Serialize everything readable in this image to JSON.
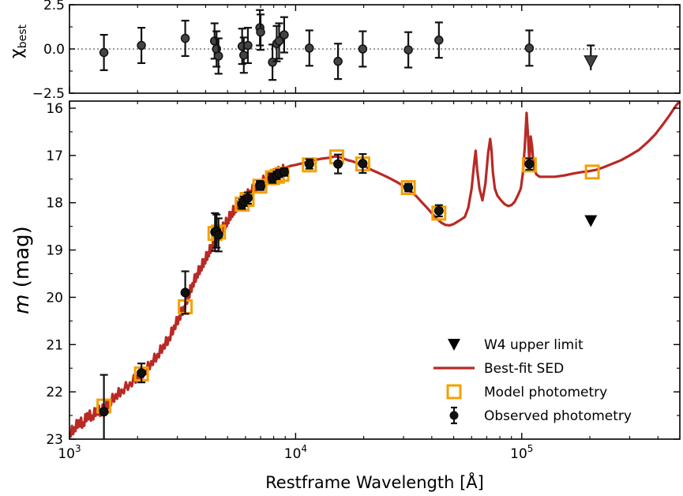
{
  "chart_data": [
    {
      "panel": "residuals",
      "type": "scatter",
      "ylabel_main": "χ",
      "ylabel_sub": "best",
      "ylim": [
        -2.5,
        2.5
      ],
      "yticks": [
        "2.5",
        "0.0",
        "−2.5"
      ],
      "ytick_values": [
        2.5,
        0.0,
        -2.5
      ],
      "xlim": [
        1000,
        500000
      ],
      "xscale": "log",
      "zero_line": true,
      "points": [
        {
          "x": 1420,
          "y": -0.2,
          "err": 1.0
        },
        {
          "x": 2080,
          "y": 0.2,
          "err": 1.0
        },
        {
          "x": 3250,
          "y": 0.6,
          "err": 1.0
        },
        {
          "x": 4380,
          "y": 0.45,
          "err": 1.0
        },
        {
          "x": 4470,
          "y": 0.0,
          "err": 1.0
        },
        {
          "x": 4560,
          "y": -0.4,
          "err": 1.0
        },
        {
          "x": 5800,
          "y": 0.15,
          "err": 1.0
        },
        {
          "x": 5900,
          "y": -0.35,
          "err": 1.0
        },
        {
          "x": 6150,
          "y": 0.2,
          "err": 1.0
        },
        {
          "x": 6950,
          "y": 1.2,
          "err": 1.0
        },
        {
          "x": 7000,
          "y": 0.95,
          "err": 1.0
        },
        {
          "x": 7900,
          "y": -0.75,
          "err": 1.0
        },
        {
          "x": 8250,
          "y": 0.3,
          "err": 1.0
        },
        {
          "x": 8450,
          "y": 0.45,
          "err": 1.0
        },
        {
          "x": 8900,
          "y": 0.8,
          "err": 1.0
        },
        {
          "x": 11500,
          "y": 0.05,
          "err": 1.0
        },
        {
          "x": 15400,
          "y": -0.7,
          "err": 1.0
        },
        {
          "x": 19800,
          "y": 0.0,
          "err": 1.0
        },
        {
          "x": 31500,
          "y": -0.05,
          "err": 1.0
        },
        {
          "x": 43000,
          "y": 0.5,
          "err": 1.0
        },
        {
          "x": 108000,
          "y": 0.05,
          "err": 1.0
        }
      ],
      "upper_limit_points": [
        {
          "x": 202000,
          "y": -0.7,
          "err_up": 0.9,
          "err_down": 0.5
        }
      ]
    },
    {
      "panel": "sed",
      "type": "line",
      "xlabel": "Restframe Wavelength [Å]",
      "ylabel_italic": "m",
      "ylabel_rest": " (mag)",
      "xscale": "log",
      "xlim": [
        1000,
        500000
      ],
      "ylim": [
        15.85,
        23.0
      ],
      "y_inverted": true,
      "yticks": [
        16,
        17,
        18,
        19,
        20,
        21,
        22,
        23
      ],
      "xticks": [
        {
          "value": 1000,
          "base": "10",
          "exp": "3"
        },
        {
          "value": 10000,
          "base": "10",
          "exp": "4"
        },
        {
          "value": 100000,
          "base": "10",
          "exp": "5"
        }
      ],
      "series": [
        {
          "name": "Best-fit SED",
          "kind": "line",
          "color": "#b82a25",
          "x": [
            1000,
            1050,
            1100,
            1150,
            1200,
            1260,
            1320,
            1380,
            1420,
            1500,
            1600,
            1700,
            1850,
            2000,
            2150,
            2300,
            2450,
            2600,
            2750,
            2900,
            3050,
            3200,
            3350,
            3500,
            3650,
            3800,
            3950,
            4100,
            4250,
            4400,
            4550,
            4700,
            4850,
            5000,
            5200,
            5400,
            5600,
            5800,
            6000,
            6300,
            6600,
            7000,
            7400,
            7800,
            8200,
            8600,
            9000,
            9500,
            10000,
            11000,
            12000,
            13000,
            14000,
            15000,
            16000,
            17000,
            18000,
            19000,
            20000,
            21000,
            22000,
            23000,
            24000,
            25000,
            26000,
            28000,
            30000,
            32000,
            34000,
            36000,
            38000,
            40000,
            42000,
            44000,
            46000,
            48000,
            50000,
            52000,
            54000,
            56000,
            58000,
            60000,
            61500,
            62500,
            63500,
            65000,
            67000,
            69000,
            71000,
            72500,
            73500,
            74500,
            76000,
            78000,
            81000,
            84000,
            87000,
            90000,
            93000,
            96000,
            99000,
            101000,
            103000,
            105000,
            106500,
            108000,
            109500,
            111000,
            112500,
            114000,
            116000,
            120000,
            128000,
            140000,
            155000,
            170000,
            185000,
            200000,
            215000,
            230000,
            250000,
            275000,
            300000,
            330000,
            360000,
            390000,
            420000,
            450000,
            480000,
            500000
          ],
          "y": [
            22.85,
            22.75,
            22.6,
            22.65,
            22.45,
            22.5,
            22.35,
            22.4,
            22.3,
            22.2,
            22.05,
            21.95,
            21.8,
            21.65,
            21.55,
            21.35,
            21.2,
            21.0,
            20.85,
            20.6,
            20.4,
            20.2,
            19.95,
            19.7,
            19.5,
            19.35,
            19.2,
            19.05,
            18.9,
            18.75,
            18.65,
            18.55,
            18.45,
            18.35,
            18.2,
            18.1,
            18.0,
            17.92,
            17.85,
            17.75,
            17.65,
            17.55,
            17.47,
            17.4,
            17.35,
            17.3,
            17.26,
            17.22,
            17.2,
            17.15,
            17.1,
            17.07,
            17.05,
            17.02,
            17.05,
            17.1,
            17.13,
            17.18,
            17.22,
            17.27,
            17.32,
            17.36,
            17.4,
            17.44,
            17.48,
            17.56,
            17.65,
            17.75,
            17.85,
            17.98,
            18.1,
            18.22,
            18.33,
            18.42,
            18.47,
            18.48,
            18.45,
            18.4,
            18.35,
            18.3,
            18.1,
            17.7,
            17.2,
            16.9,
            17.3,
            17.7,
            17.95,
            17.6,
            16.95,
            16.65,
            16.9,
            17.35,
            17.7,
            17.85,
            17.95,
            18.03,
            18.07,
            18.05,
            17.98,
            17.85,
            17.7,
            17.4,
            16.85,
            16.1,
            16.55,
            17.15,
            16.6,
            16.8,
            17.15,
            17.3,
            17.4,
            17.45,
            17.45,
            17.45,
            17.42,
            17.38,
            17.35,
            17.33,
            17.3,
            17.25,
            17.18,
            17.1,
            17.0,
            16.88,
            16.72,
            16.55,
            16.35,
            16.15,
            15.95,
            15.85
          ]
        },
        {
          "name": "Model photometry",
          "kind": "square-marker",
          "color": "#f3a000",
          "x": [
            1420,
            2080,
            3250,
            4400,
            4560,
            5800,
            6100,
            6950,
            7900,
            8300,
            8700,
            11500,
            15200,
            19800,
            31500,
            43000,
            108000,
            205000
          ],
          "y": [
            22.3,
            21.62,
            20.2,
            18.65,
            18.62,
            18.03,
            17.93,
            17.65,
            17.47,
            17.44,
            17.4,
            17.2,
            17.03,
            17.18,
            17.68,
            18.22,
            17.2,
            17.35
          ]
        },
        {
          "name": "Observed photometry",
          "kind": "point-with-errorbar",
          "color": "#111111",
          "x": [
            1420,
            2080,
            3250,
            4400,
            4470,
            4560,
            5800,
            5900,
            6150,
            6950,
            7000,
            7900,
            8250,
            8450,
            8900,
            11500,
            15400,
            19800,
            31500,
            43000,
            108000
          ],
          "y": [
            22.42,
            21.6,
            19.9,
            18.62,
            18.6,
            18.68,
            18.03,
            17.97,
            17.9,
            17.62,
            17.65,
            17.48,
            17.42,
            17.38,
            17.35,
            17.18,
            17.18,
            17.17,
            17.68,
            18.17,
            17.18
          ],
          "err": [
            0.78,
            0.2,
            0.45,
            0.4,
            0.35,
            0.35,
            0.1,
            0.1,
            0.12,
            0.08,
            0.08,
            0.1,
            0.08,
            0.08,
            0.08,
            0.1,
            0.2,
            0.2,
            0.08,
            0.12,
            0.12
          ]
        },
        {
          "name": "W4 upper limit",
          "kind": "down-triangle",
          "color": "#000000",
          "x": [
            202000
          ],
          "y": [
            18.38
          ]
        }
      ],
      "legend": {
        "placement": "lower-right",
        "entries": [
          "W4 upper limit",
          "Best-fit SED",
          "Model photometry",
          "Observed photometry"
        ]
      }
    }
  ]
}
